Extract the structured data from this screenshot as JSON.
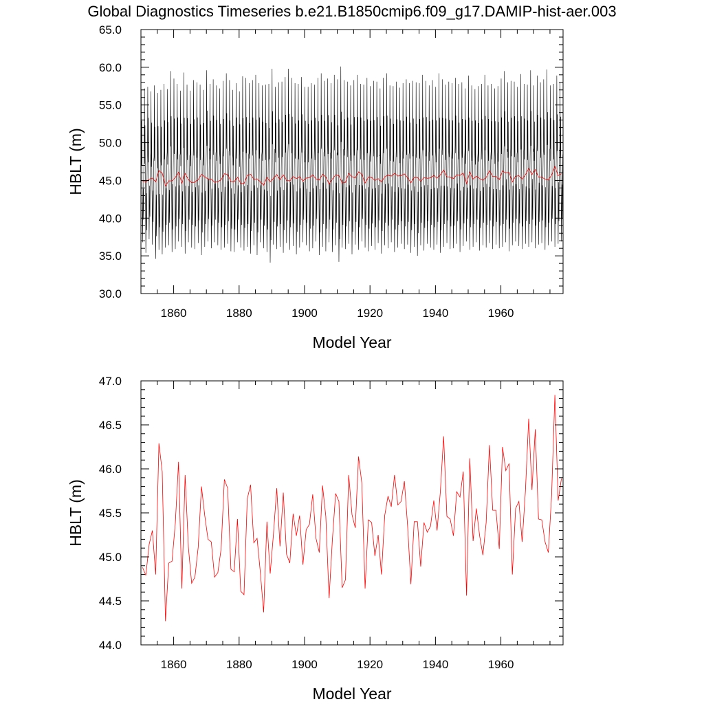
{
  "title": "Global Diagnostics Timeseries b.e21.B1850cmip6.f09_g17.DAMIP-hist-aer.003",
  "colors": {
    "monthly": "#000000",
    "annual": "#ff0000",
    "axes": "#000000"
  },
  "chart_data": [
    {
      "type": "line",
      "xlabel": "Model Year",
      "ylabel": "HBLT (m)",
      "xlim": [
        1850,
        1979
      ],
      "ylim": [
        30.0,
        65.0
      ],
      "xticks": [
        "1860",
        "1880",
        "1900",
        "1920",
        "1940",
        "1960"
      ],
      "yticks": [
        "30.0",
        "35.0",
        "40.0",
        "45.0",
        "50.0",
        "55.0",
        "60.0",
        "65.0"
      ],
      "series": [
        {
          "color": "#000000",
          "resolution": "monthly",
          "yearly_max": [
            57.0,
            57.2,
            57.4,
            56.8,
            57.6,
            56.6,
            57.0,
            57.8,
            57.1,
            59.5,
            58.5,
            57.8,
            56.9,
            59.3,
            57.7,
            56.9,
            58.3,
            58.0,
            57.7,
            57.0,
            59.6,
            57.8,
            58.4,
            57.6,
            57.2,
            58.2,
            59.2,
            58.3,
            57.0,
            57.9,
            56.8,
            58.8,
            58.6,
            57.9,
            58.3,
            59.0,
            57.9,
            57.6,
            57.7,
            57.8,
            59.8,
            57.4,
            58.0,
            58.1,
            58.7,
            59.8,
            58.6,
            57.9,
            57.8,
            58.7,
            57.4,
            57.4,
            57.9,
            57.7,
            58.6,
            59.2,
            58.2,
            58.5,
            57.9,
            59.0,
            58.4,
            60.1,
            58.3,
            58.1,
            57.6,
            58.3,
            59.0,
            57.8,
            57.7,
            58.6,
            57.5,
            58.2,
            58.1,
            57.2,
            58.6,
            59.2,
            57.6,
            57.5,
            58.1,
            57.3,
            57.9,
            58.4,
            57.9,
            58.2,
            58.0,
            57.9,
            59.0,
            58.2,
            57.6,
            58.3,
            57.4,
            59.2,
            58.4,
            57.7,
            58.1,
            57.9,
            58.6,
            57.8,
            58.0,
            57.2,
            58.9,
            57.6,
            57.1,
            57.5,
            57.8,
            59.0,
            57.6,
            57.8,
            57.2,
            57.5,
            58.5,
            59.5,
            58.0,
            58.2,
            58.1,
            57.4,
            59.1,
            57.8,
            57.7,
            59.6,
            57.6,
            58.9,
            58.0,
            58.4,
            59.7,
            57.6,
            57.8,
            58.9,
            58.0
          ],
          "yearly_min": [
            36.8,
            35.4,
            37.2,
            36.5,
            34.6,
            35.8,
            35.2,
            36.1,
            36.4,
            35.5,
            35.9,
            36.9,
            36.2,
            35.3,
            36.8,
            36.1,
            35.9,
            36.7,
            35.1,
            36.2,
            36.9,
            36.0,
            36.8,
            36.4,
            35.8,
            36.1,
            36.6,
            35.6,
            35.5,
            36.8,
            36.1,
            35.7,
            36.2,
            35.3,
            36.4,
            35.1,
            36.8,
            36.0,
            35.5,
            34.1,
            36.5,
            35.9,
            36.2,
            35.4,
            36.7,
            35.8,
            36.3,
            35.2,
            36.1,
            36.8,
            36.4,
            35.6,
            36.0,
            36.9,
            35.1,
            36.2,
            35.6,
            36.8,
            35.5,
            36.4,
            34.2,
            36.1,
            35.9,
            36.6,
            35.2,
            36.5,
            35.8,
            36.9,
            36.1,
            35.6,
            36.3,
            35.8,
            36.7,
            35.3,
            36.4,
            36.0,
            36.8,
            35.5,
            36.1,
            36.6,
            35.9,
            36.5,
            35.4,
            36.2,
            35.0,
            36.4,
            35.7,
            36.6,
            36.1,
            35.8,
            36.5,
            35.4,
            36.2,
            36.7,
            35.9,
            36.0,
            36.6,
            35.5,
            36.3,
            36.9,
            35.8,
            36.2,
            36.8,
            35.7,
            36.4,
            36.1,
            36.7,
            35.9,
            36.5,
            36.0,
            36.2,
            36.8,
            35.6,
            36.4,
            36.9,
            36.3,
            35.9,
            36.6,
            36.2,
            36.8,
            36.0,
            36.5,
            36.7,
            35.8,
            36.4,
            36.9,
            36.2,
            36.6,
            36.9
          ]
        },
        {
          "color": "#ff0000",
          "resolution": "annual",
          "x_start": 1850,
          "values": [
            44.88,
            44.79,
            45.14,
            45.3,
            44.8,
            46.29,
            45.97,
            44.27,
            44.93,
            44.95,
            45.38,
            46.08,
            44.64,
            45.93,
            45.11,
            44.7,
            44.77,
            45.11,
            45.8,
            45.47,
            45.2,
            45.17,
            44.77,
            44.82,
            45.09,
            45.88,
            45.78,
            44.86,
            44.83,
            45.43,
            44.61,
            44.57,
            45.66,
            45.82,
            45.16,
            45.21,
            44.82,
            44.37,
            45.4,
            44.81,
            45.26,
            45.78,
            45.12,
            45.73,
            45.03,
            44.93,
            45.49,
            45.24,
            45.47,
            44.91,
            45.31,
            45.37,
            45.71,
            45.21,
            45.05,
            45.81,
            45.46,
            44.53,
            45.19,
            45.72,
            45.63,
            44.65,
            44.74,
            45.93,
            45.48,
            45.33,
            46.14,
            45.84,
            44.64,
            45.42,
            45.39,
            45.01,
            45.25,
            44.8,
            45.47,
            45.69,
            45.57,
            45.93,
            45.59,
            45.63,
            45.86,
            45.35,
            44.69,
            45.4,
            45.4,
            44.89,
            45.39,
            45.28,
            45.35,
            45.64,
            45.3,
            45.74,
            46.37,
            45.46,
            45.43,
            45.24,
            45.74,
            45.68,
            45.97,
            44.56,
            46.12,
            45.18,
            45.55,
            45.24,
            45.02,
            45.39,
            46.27,
            45.53,
            45.53,
            45.09,
            46.25,
            45.98,
            46.06,
            44.8,
            45.55,
            45.63,
            45.17,
            45.75,
            46.57,
            45.76,
            46.45,
            45.43,
            45.42,
            45.17,
            45.05,
            45.7,
            46.84,
            45.64,
            45.89
          ]
        }
      ]
    },
    {
      "type": "line",
      "xlabel": "Model Year",
      "ylabel": "HBLT (m)",
      "xlim": [
        1850,
        1979
      ],
      "ylim": [
        44.0,
        47.0
      ],
      "xticks": [
        "1860",
        "1880",
        "1900",
        "1920",
        "1940",
        "1960"
      ],
      "yticks": [
        "44.0",
        "44.5",
        "45.0",
        "45.5",
        "46.0",
        "46.5",
        "47.0"
      ],
      "series": [
        {
          "color": "#ff0000",
          "resolution": "annual",
          "x_start": 1850,
          "values": [
            44.88,
            44.79,
            45.14,
            45.3,
            44.8,
            46.29,
            45.97,
            44.27,
            44.93,
            44.95,
            45.38,
            46.08,
            44.64,
            45.93,
            45.11,
            44.7,
            44.77,
            45.11,
            45.8,
            45.47,
            45.2,
            45.17,
            44.77,
            44.82,
            45.09,
            45.88,
            45.78,
            44.86,
            44.83,
            45.43,
            44.61,
            44.57,
            45.66,
            45.82,
            45.16,
            45.21,
            44.82,
            44.37,
            45.4,
            44.81,
            45.26,
            45.78,
            45.12,
            45.73,
            45.03,
            44.93,
            45.49,
            45.24,
            45.47,
            44.91,
            45.31,
            45.37,
            45.71,
            45.21,
            45.05,
            45.81,
            45.46,
            44.53,
            45.19,
            45.72,
            45.63,
            44.65,
            44.74,
            45.93,
            45.48,
            45.33,
            46.14,
            45.84,
            44.64,
            45.42,
            45.39,
            45.01,
            45.25,
            44.8,
            45.47,
            45.69,
            45.57,
            45.93,
            45.59,
            45.63,
            45.86,
            45.35,
            44.69,
            45.4,
            45.4,
            44.89,
            45.39,
            45.28,
            45.35,
            45.64,
            45.3,
            45.74,
            46.37,
            45.46,
            45.43,
            45.24,
            45.74,
            45.68,
            45.97,
            44.56,
            46.12,
            45.18,
            45.55,
            45.24,
            45.02,
            45.39,
            46.27,
            45.53,
            45.53,
            45.09,
            46.25,
            45.98,
            46.06,
            44.8,
            45.55,
            45.63,
            45.17,
            45.75,
            46.57,
            45.76,
            46.45,
            45.43,
            45.42,
            45.17,
            45.05,
            45.7,
            46.84,
            45.64,
            45.89
          ]
        }
      ]
    }
  ]
}
